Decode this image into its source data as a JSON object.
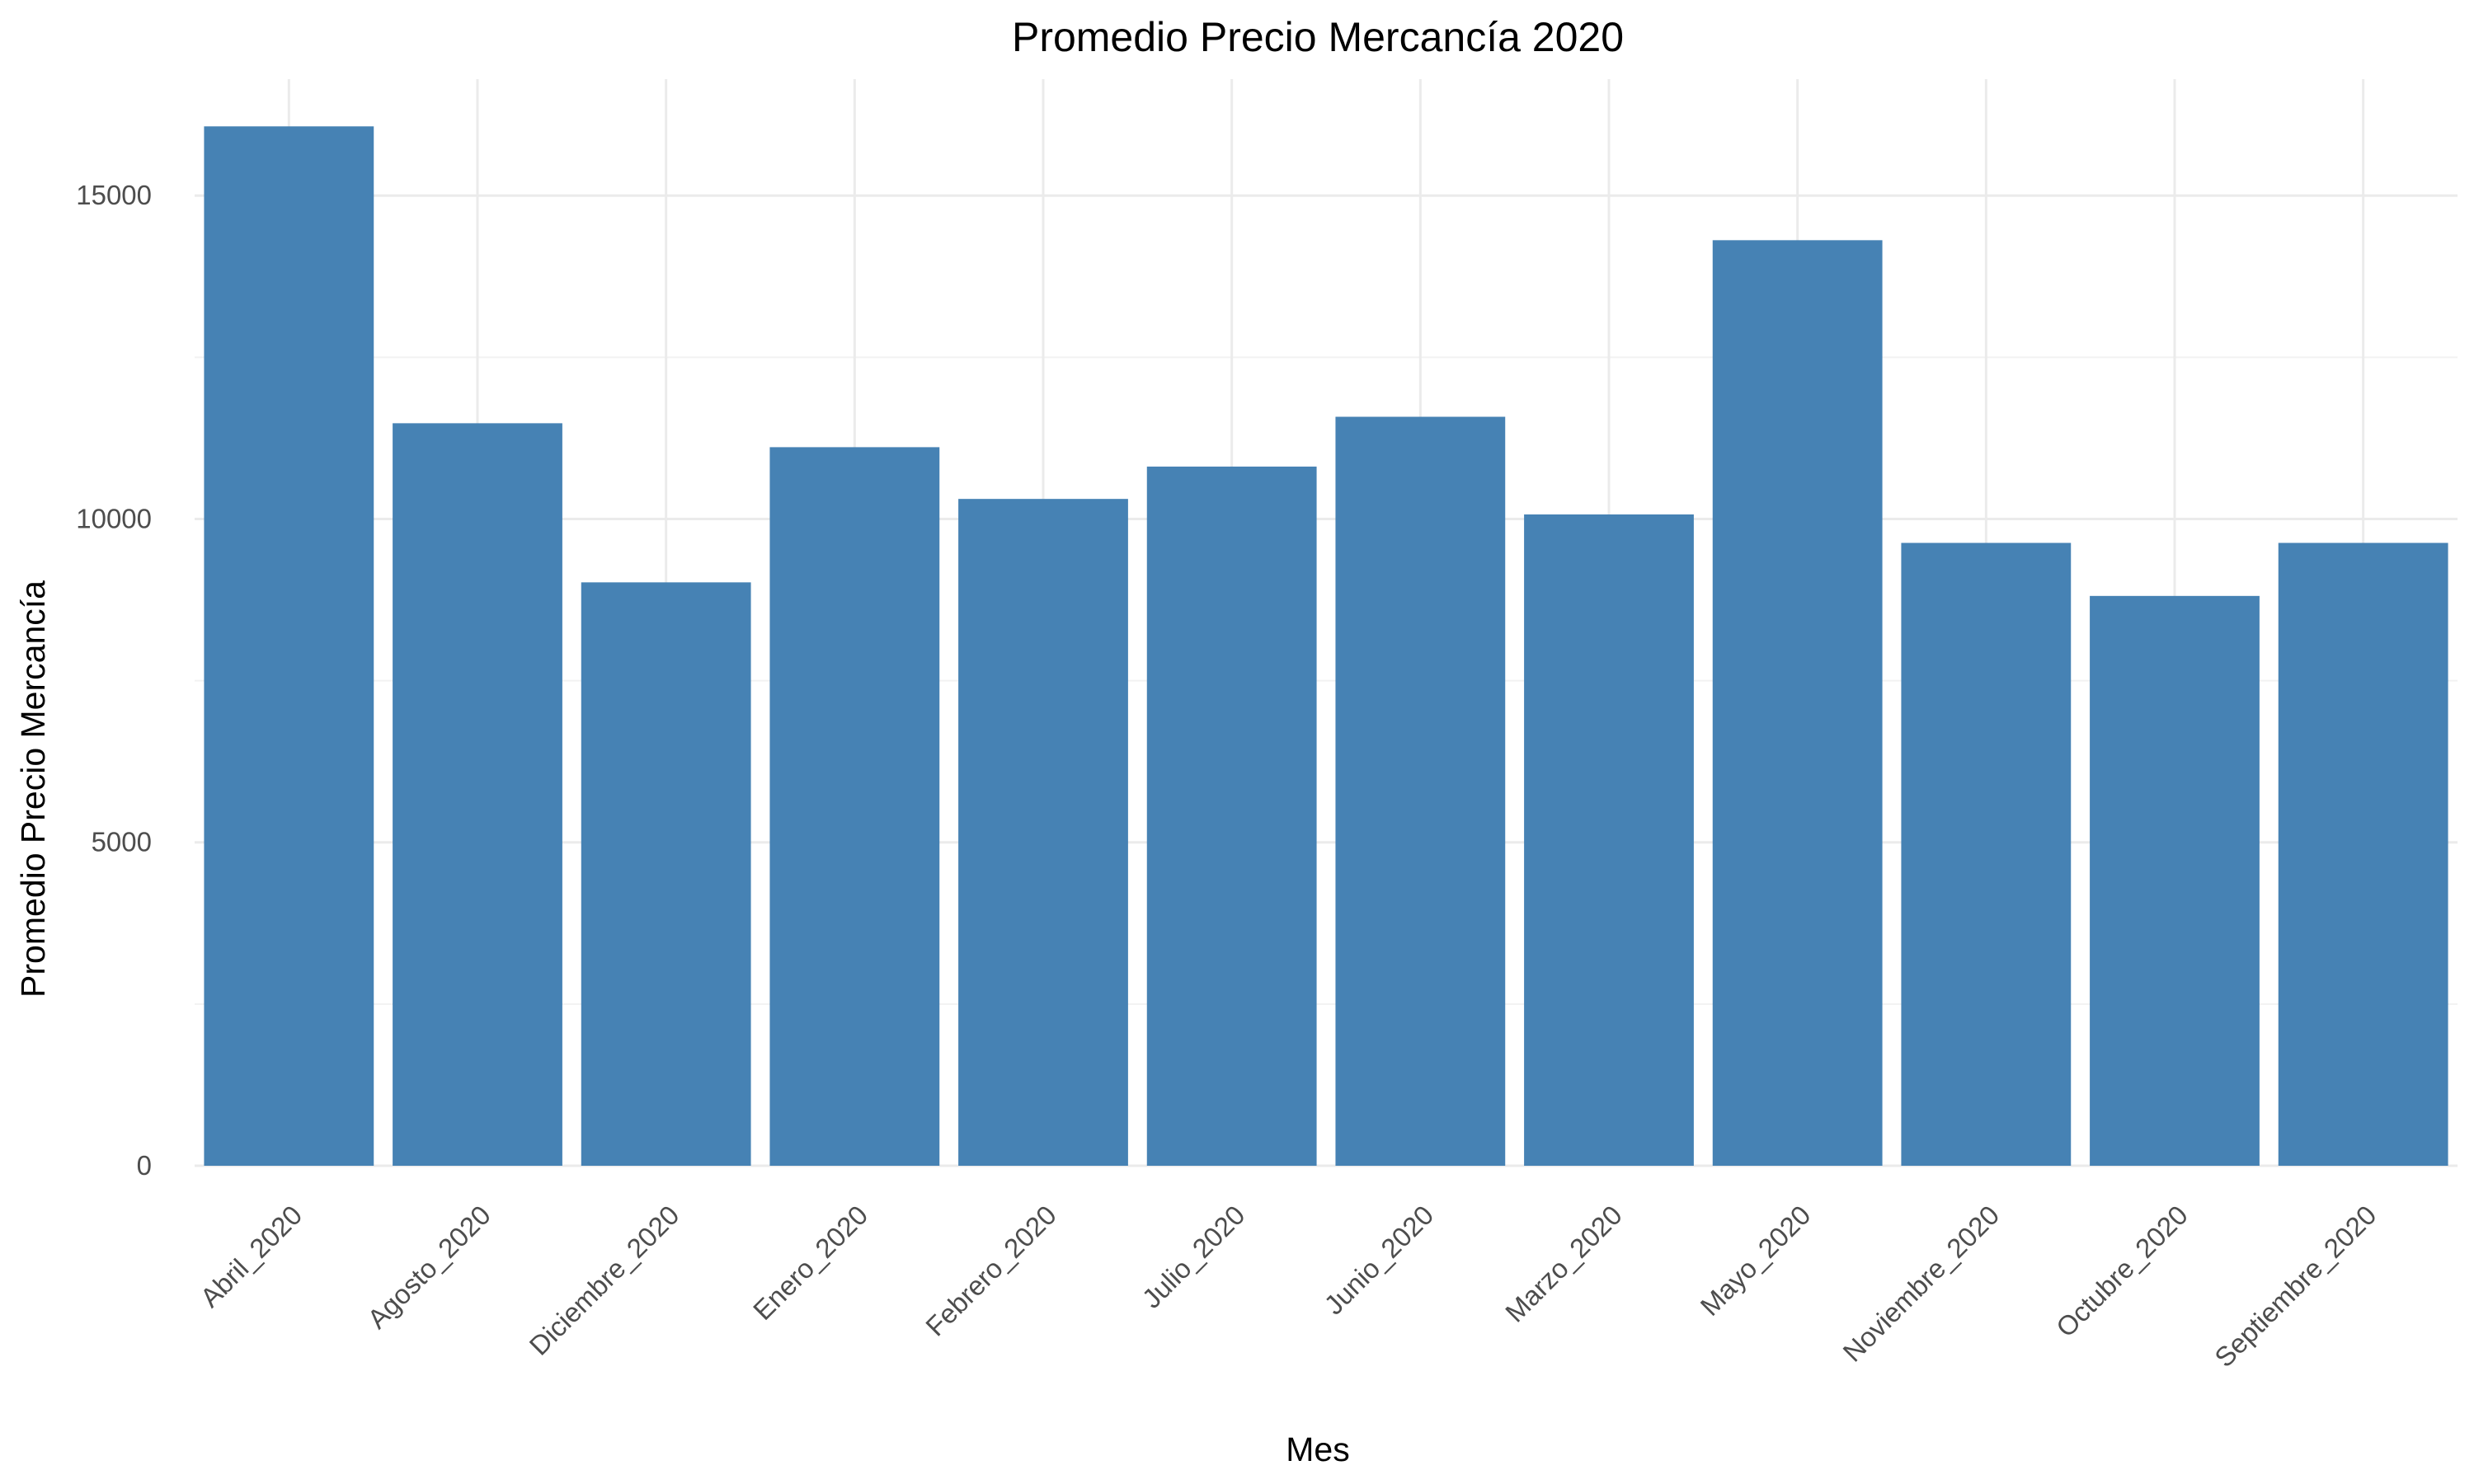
{
  "chart_data": {
    "type": "bar",
    "title": "Promedio Precio Mercancía 2020",
    "xlabel": "Mes",
    "ylabel": "Promedio Precio Mercancía",
    "categories": [
      "Abril_2020",
      "Agosto_2020",
      "Diciembre_2020",
      "Enero_2020",
      "Febrero_2020",
      "Julio_2020",
      "Junio_2020",
      "Marzo_2020",
      "Mayo_2020",
      "Noviembre_2020",
      "Octubre_2020",
      "Septiembre_2020"
    ],
    "values": [
      16070,
      11480,
      9020,
      11110,
      10310,
      10810,
      11580,
      10070,
      14310,
      9630,
      8810,
      9630
    ],
    "ylim": [
      0,
      16800
    ],
    "yticks": [
      0,
      5000,
      10000,
      15000
    ],
    "yticks_minor": [
      2500,
      7500,
      12500
    ],
    "grid": true,
    "legend": "none",
    "bar_color": "#4682b4",
    "grid_color": "#ebebeb"
  }
}
